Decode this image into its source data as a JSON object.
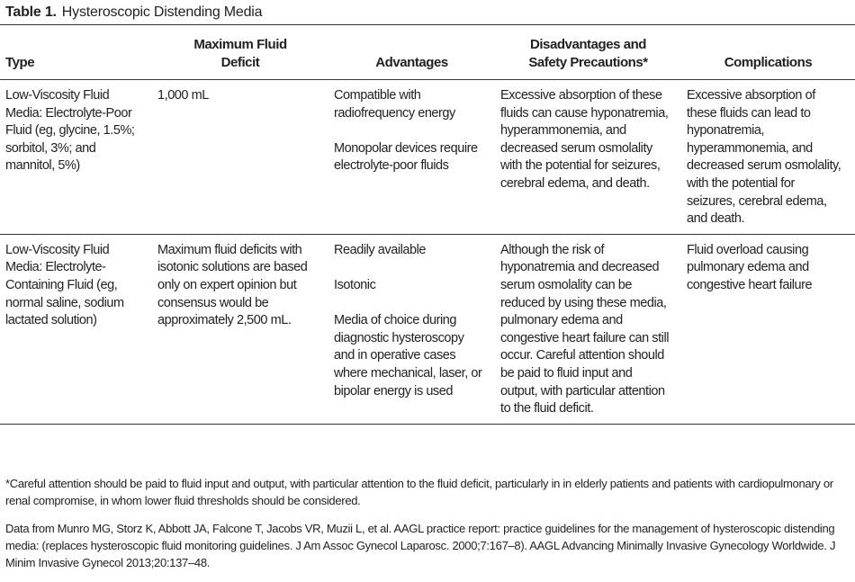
{
  "table": {
    "label": "Table 1.",
    "title": "Hysteroscopic Distending Media",
    "headers": [
      "Type",
      "Maximum Fluid Deficit",
      "Advantages",
      "Disadvantages and Safety Precautions*",
      "Complications"
    ],
    "rows": [
      [
        [
          "Low-Viscosity Fluid Media: Electrolyte-Poor Fluid (eg, glycine, 1.5%; sorbitol, 3%; and mannitol, 5%)"
        ],
        [
          "1,000 mL"
        ],
        [
          "Compatible with radiofrequency energy",
          "Monopolar devices require electrolyte-poor fluids"
        ],
        [
          "Excessive absorption of these fluids can cause hyponatremia, hyperammonemia, and decreased serum osmolality with the potential for seizures, cerebral edema, and death."
        ],
        [
          "Excessive absorption of these fluids can lead to hyponatremia, hyperammonemia, and decreased serum osmolality, with the potential for seizures, cerebral edema, and death."
        ]
      ],
      [
        [
          "Low-Viscosity Fluid Media: Electrolyte-Containing Fluid (eg, normal saline, sodium lactated solution)"
        ],
        [
          "Maximum fluid deficits with isotonic solutions are based only on expert opinion but consensus would be approximately 2,500 mL."
        ],
        [
          "Readily available",
          "Isotonic",
          "Media of choice during diagnostic hysteroscopy and in operative cases where mechanical, laser, or bipolar energy is used"
        ],
        [
          "Although the risk of hyponatremia and decreased serum osmolality can be reduced by using these media, pulmonary edema and congestive heart failure can still occur. Careful attention should be paid to fluid input and output, with particular attention to the fluid deficit."
        ],
        [
          "Fluid overload causing pulmonary edema and congestive heart failure"
        ]
      ]
    ],
    "footnote": "*Careful attention should be paid to fluid input and output, with particular attention to the fluid deficit, particularly in in elderly patients and patients with cardiopulmonary or renal compromise, in whom lower fluid thresholds should be considered.",
    "source": "Data from Munro MG, Storz K, Abbott JA, Falcone T, Jacobs VR, Muzii L, et al. AAGL practice report: practice guidelines for the management of hysteroscopic distending media: (replaces hysteroscopic fluid monitoring guidelines. J Am Assoc Gynecol Laparosc. 2000;7:167–8). AAGL Advancing Minimally Invasive Gynecology Worldwide. J Minim Invasive Gynecol 2013;20:137–48."
  }
}
